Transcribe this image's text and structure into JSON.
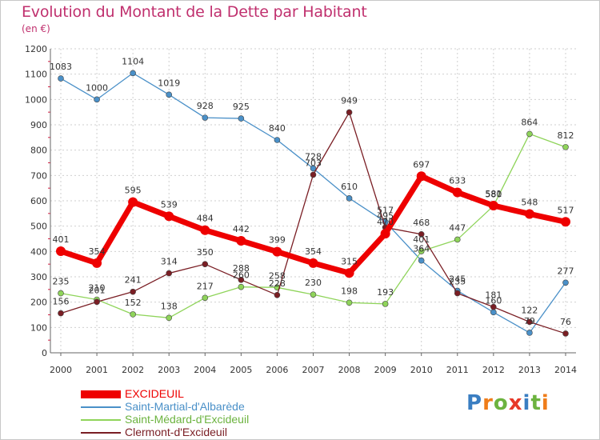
{
  "title": "Evolution du Montant de la Dette par Habitant",
  "unit_label": "(en €)",
  "logo": {
    "text": "Proxiti",
    "colors": [
      "#3a7ec2",
      "#ef7d1a",
      "#6cb33f",
      "#e73828",
      "#3a7ec2",
      "#6cb33f",
      "#ef7d1a"
    ]
  },
  "chart_data": {
    "type": "line",
    "x": [
      2000,
      2001,
      2002,
      2003,
      2004,
      2005,
      2006,
      2007,
      2008,
      2009,
      2010,
      2011,
      2012,
      2013,
      2014
    ],
    "ylim": [
      0,
      1200
    ],
    "yticks": [
      0,
      100,
      200,
      300,
      400,
      500,
      600,
      700,
      800,
      900,
      1000,
      1100,
      1200
    ],
    "grid": true,
    "legend": "bottom-left",
    "series": [
      {
        "name": "Saint-Martial-d'Albarède",
        "color": "#4a90c8",
        "values": [
          1083,
          1000,
          1104,
          1019,
          928,
          925,
          840,
          728,
          610,
          517,
          364,
          245,
          160,
          79,
          277
        ],
        "labels": [
          "1083",
          "1000",
          "1104",
          "1019",
          "928",
          "925",
          "840",
          "728",
          "610",
          "517",
          "364",
          "245",
          "160",
          "79",
          "277"
        ]
      },
      {
        "name": "Saint-Médard-d'Excideuil",
        "color": "#8fd45a",
        "values": [
          235,
          210,
          152,
          138,
          217,
          260,
          258,
          230,
          198,
          193,
          401,
          447,
          580,
          864,
          812
        ],
        "labels": [
          "235",
          "210",
          "152",
          "138",
          "217",
          "260",
          "258",
          "230",
          "198",
          "193",
          "401",
          "447",
          "580",
          "864",
          "812"
        ]
      },
      {
        "name": "Clermont-d'Excideuil",
        "color": "#7a1e24",
        "values": [
          156,
          201,
          241,
          314,
          350,
          288,
          228,
          703,
          949,
          495,
          468,
          235,
          181,
          122,
          76
        ],
        "labels": [
          "156",
          "201",
          "241",
          "314",
          "350",
          "288",
          "228",
          "703",
          "949",
          "495",
          "468",
          "235",
          "181",
          "122",
          "76"
        ]
      },
      {
        "name": "EXCIDEUIL",
        "color": "#ee0000",
        "values": [
          401,
          354,
          595,
          539,
          484,
          442,
          399,
          354,
          315,
          470,
          697,
          633,
          581,
          548,
          517
        ],
        "labels": [
          "401",
          "354",
          "595",
          "539",
          "484",
          "442",
          "399",
          "354",
          "315",
          "470",
          "697",
          "633",
          "581",
          "548",
          "517"
        ]
      }
    ]
  }
}
